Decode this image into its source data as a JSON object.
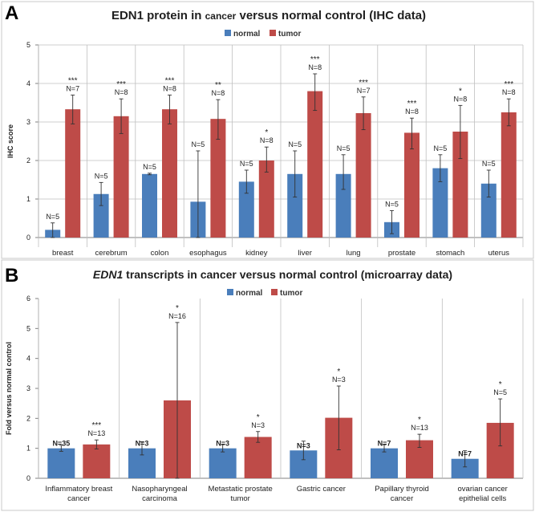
{
  "colors": {
    "normal": "#4a7ebb",
    "tumor": "#be4b48",
    "grid": "#bfbfbf",
    "axis": "#808080"
  },
  "chart_data": [
    {
      "panel": "A",
      "type": "bar",
      "title": "EDN1 protein in cancer versus normal control (IHC data)",
      "title_parts": [
        "EDN1 protein in ",
        "cancer",
        " versus normal control (IHC data)"
      ],
      "ylabel": "IHC score",
      "ylim": [
        0,
        5
      ],
      "yticks": [
        "0",
        "1",
        "2",
        "3",
        "4",
        "5"
      ],
      "grid": true,
      "legend_position": "top",
      "categories": [
        "breast",
        "cerebrum",
        "colon",
        "esophagus",
        "kidney",
        "liver",
        "lung",
        "prostate",
        "stomach",
        "uterus"
      ],
      "series": [
        {
          "name": "normal",
          "values": [
            0.2,
            1.13,
            1.65,
            0.93,
            1.45,
            1.65,
            1.65,
            0.4,
            1.8,
            1.4
          ],
          "err_lo": [
            0.0,
            0.83,
            1.63,
            0.0,
            1.15,
            1.05,
            1.25,
            0.1,
            1.45,
            1.05
          ],
          "err_hi": [
            0.38,
            1.43,
            1.67,
            2.25,
            1.75,
            2.25,
            2.15,
            0.7,
            2.15,
            1.75
          ],
          "labels": [
            "N=5",
            "N=5",
            "N=5",
            "N=5",
            "N=5",
            "N=5",
            "N=5",
            "N=5",
            "N=5",
            "N=5"
          ]
        },
        {
          "name": "tumor",
          "values": [
            3.33,
            3.15,
            3.33,
            3.08,
            2.0,
            3.8,
            3.23,
            2.72,
            2.75,
            3.25
          ],
          "err_lo": [
            2.95,
            2.7,
            2.95,
            2.55,
            1.7,
            3.3,
            2.8,
            2.3,
            2.05,
            2.9
          ],
          "err_hi": [
            3.7,
            3.6,
            3.7,
            3.58,
            2.35,
            4.25,
            3.65,
            3.1,
            3.43,
            3.6
          ],
          "labels": [
            "N=7",
            "N=8",
            "N=8",
            "N=8",
            "N=8",
            "N=8",
            "N=7",
            "N=8",
            "N=8",
            "N=8"
          ],
          "significance": [
            "***",
            "***",
            "***",
            "**",
            "*",
            "***",
            "***",
            "***",
            "*",
            "***"
          ]
        }
      ]
    },
    {
      "panel": "B",
      "type": "bar",
      "title": "EDN1 transcripts in cancer versus normal control (microarray data)",
      "title_parts": [
        "EDN1",
        " transcripts in cancer versus normal control (microarray data)"
      ],
      "ylabel": "Fold versus normal control",
      "ylim": [
        0,
        6
      ],
      "yticks": [
        "0",
        "1",
        "2",
        "3",
        "4",
        "5",
        "6"
      ],
      "grid": false,
      "legend_position": "top",
      "categories": [
        [
          "Inflammatory breast",
          "cancer"
        ],
        [
          "Nasopharyngeal",
          "carcinoma"
        ],
        [
          "Metastatic prostate",
          "tumor"
        ],
        [
          "Gastric cancer"
        ],
        [
          "Papillary thyroid",
          "cancer"
        ],
        [
          "ovarian cancer",
          "epithelial cells"
        ]
      ],
      "series": [
        {
          "name": "normal",
          "values": [
            1.0,
            1.0,
            1.0,
            0.93,
            1.0,
            0.65
          ],
          "err_lo": [
            0.9,
            0.78,
            0.88,
            0.62,
            0.88,
            0.38
          ],
          "err_hi": [
            1.1,
            1.22,
            1.12,
            1.24,
            1.12,
            0.92
          ],
          "labels": [
            "N=35",
            "N=3",
            "N=3",
            "N=3",
            "N=7",
            "N=7"
          ]
        },
        {
          "name": "tumor",
          "values": [
            1.13,
            2.6,
            1.38,
            2.02,
            1.27,
            1.85
          ],
          "err_lo": [
            0.98,
            0.0,
            1.2,
            0.95,
            1.03,
            1.08
          ],
          "err_hi": [
            1.28,
            5.2,
            1.56,
            3.08,
            1.47,
            2.65
          ],
          "labels": [
            "N=13",
            "N=16",
            "N=3",
            "N=3",
            "N=13",
            "N=5"
          ],
          "significance": [
            "***",
            "*",
            "*",
            "*",
            "*",
            "*"
          ]
        }
      ]
    }
  ]
}
